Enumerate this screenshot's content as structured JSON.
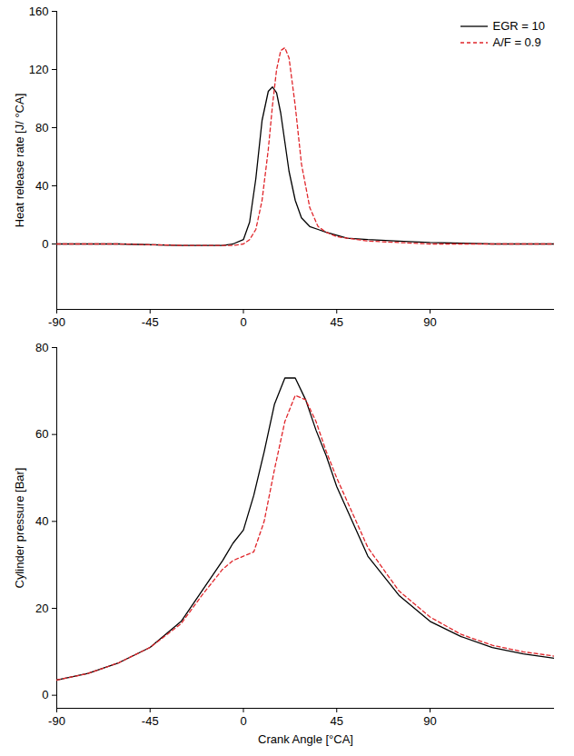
{
  "chart_data": [
    {
      "type": "line",
      "ylabel": "Heat release rate [J/ °CA]",
      "xlim": [
        -90,
        150
      ],
      "xticks": [
        -90,
        -45,
        0,
        45,
        90
      ],
      "ylim": [
        -45,
        160
      ],
      "yticks": [
        0,
        40,
        80,
        120,
        160
      ],
      "legend": "top-right",
      "x": [
        -90,
        -60,
        -30,
        -10,
        -5,
        0,
        3,
        6,
        9,
        12,
        14,
        16,
        18,
        20,
        22,
        25,
        28,
        32,
        36,
        40,
        45,
        50,
        60,
        75,
        90,
        120,
        150
      ],
      "series": [
        {
          "name": "EGR = 10",
          "color": "#000000",
          "line_style": "solid",
          "values": [
            0,
            0,
            -1,
            -1,
            0,
            3,
            15,
            45,
            85,
            105,
            108,
            104,
            90,
            70,
            50,
            30,
            18,
            12,
            10,
            8,
            6,
            4,
            3,
            2,
            1,
            0,
            0
          ]
        },
        {
          "name": "A/F = 0.9",
          "color": "#e0262b",
          "line_style": "dashed",
          "values": [
            0,
            0,
            -1,
            -1,
            -1,
            0,
            3,
            10,
            30,
            65,
            95,
            120,
            133,
            135,
            128,
            95,
            55,
            25,
            12,
            8,
            5,
            4,
            2,
            1,
            0,
            0,
            0
          ]
        }
      ]
    },
    {
      "type": "line",
      "xlabel": "Crank Angle [°CA]",
      "ylabel": "Cylinder pressure [Bar]",
      "xlim": [
        -90,
        150
      ],
      "xticks": [
        -90,
        -45,
        0,
        45,
        90
      ],
      "ylim": [
        -3,
        80
      ],
      "yticks": [
        0,
        20,
        40,
        60,
        80
      ],
      "x": [
        -90,
        -75,
        -60,
        -45,
        -30,
        -20,
        -10,
        -5,
        0,
        5,
        10,
        15,
        20,
        25,
        30,
        35,
        40,
        45,
        60,
        75,
        90,
        105,
        120,
        135,
        150
      ],
      "series": [
        {
          "name": "EGR = 10",
          "color": "#000000",
          "line_style": "solid",
          "values": [
            3.5,
            5,
            7.5,
            11,
            17,
            24,
            31,
            35,
            38,
            46,
            56,
            67,
            73,
            73,
            68,
            61,
            55,
            48,
            32,
            23,
            17,
            13.5,
            11,
            9.5,
            8.5
          ]
        },
        {
          "name": "A/F = 0.9",
          "color": "#e0262b",
          "line_style": "dashed",
          "values": [
            3.5,
            5,
            7.5,
            11,
            16.5,
            23,
            29,
            31,
            32,
            33,
            40,
            52,
            63,
            69,
            68,
            63,
            56,
            50,
            34,
            24,
            18,
            14,
            11.5,
            10,
            9
          ]
        }
      ]
    }
  ]
}
